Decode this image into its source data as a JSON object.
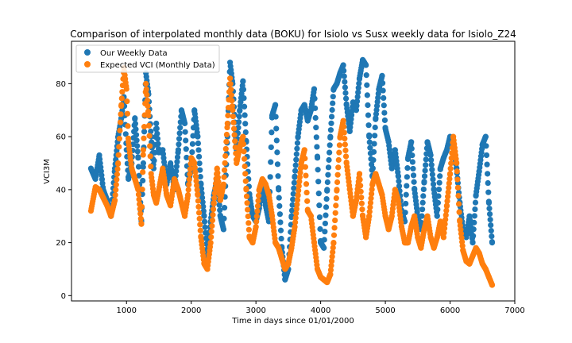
{
  "chart_data": {
    "type": "scatter",
    "title": "Comparison of interpolated monthly data (BOKU) for Isiolo vs Susx weekly data for Isiolo_Z24",
    "xlabel": "Time in days since 01/01/2000",
    "ylabel": "VCI3M",
    "xlim": [
      150,
      7000
    ],
    "ylim": [
      -2,
      96
    ],
    "xticks": [
      1000,
      2000,
      3000,
      4000,
      5000,
      6000,
      7000
    ],
    "yticks": [
      0,
      20,
      40,
      60,
      80
    ],
    "grid": false,
    "legend_position": "top-left",
    "series": [
      {
        "name": "Our Weekly Data",
        "color": "#1f77b4",
        "anchors": [
          [
            450,
            48
          ],
          [
            520,
            44
          ],
          [
            580,
            53
          ],
          [
            640,
            40
          ],
          [
            700,
            36
          ],
          [
            760,
            30
          ],
          [
            820,
            48
          ],
          [
            870,
            60
          ],
          [
            920,
            67
          ],
          [
            960,
            75
          ],
          [
            1000,
            55
          ],
          [
            1030,
            44
          ],
          [
            1080,
            50
          ],
          [
            1130,
            67
          ],
          [
            1180,
            52
          ],
          [
            1230,
            28
          ],
          [
            1260,
            50
          ],
          [
            1300,
            84
          ],
          [
            1340,
            76
          ],
          [
            1380,
            60
          ],
          [
            1420,
            48
          ],
          [
            1460,
            65
          ],
          [
            1500,
            54
          ],
          [
            1560,
            55
          ],
          [
            1620,
            42
          ],
          [
            1680,
            50
          ],
          [
            1740,
            40
          ],
          [
            1800,
            55
          ],
          [
            1850,
            70
          ],
          [
            1900,
            65
          ],
          [
            1950,
            42
          ],
          [
            2000,
            48
          ],
          [
            2050,
            70
          ],
          [
            2100,
            60
          ],
          [
            2150,
            42
          ],
          [
            2200,
            30
          ],
          [
            2250,
            15
          ],
          [
            2300,
            28
          ],
          [
            2350,
            38
          ],
          [
            2400,
            44
          ],
          [
            2450,
            30
          ],
          [
            2500,
            25
          ],
          [
            2560,
            60
          ],
          [
            2600,
            88
          ],
          [
            2640,
            80
          ],
          [
            2700,
            55
          ],
          [
            2750,
            70
          ],
          [
            2800,
            81
          ],
          [
            2850,
            58
          ],
          [
            2900,
            38
          ],
          [
            2950,
            30
          ],
          [
            3000,
            28
          ],
          [
            3050,
            33
          ],
          [
            3100,
            42
          ],
          [
            3150,
            34
          ],
          [
            3200,
            28
          ],
          [
            3250,
            68
          ],
          [
            3300,
            72
          ],
          [
            3350,
            40
          ],
          [
            3400,
            18
          ],
          [
            3450,
            6
          ],
          [
            3500,
            10
          ],
          [
            3550,
            30
          ],
          [
            3600,
            45
          ],
          [
            3650,
            60
          ],
          [
            3700,
            70
          ],
          [
            3750,
            72
          ],
          [
            3800,
            66
          ],
          [
            3850,
            70
          ],
          [
            3900,
            78
          ],
          [
            3950,
            52
          ],
          [
            4000,
            20
          ],
          [
            4050,
            18
          ],
          [
            4100,
            40
          ],
          [
            4150,
            60
          ],
          [
            4200,
            78
          ],
          [
            4250,
            80
          ],
          [
            4300,
            84
          ],
          [
            4350,
            87
          ],
          [
            4400,
            72
          ],
          [
            4450,
            62
          ],
          [
            4500,
            73
          ],
          [
            4550,
            70
          ],
          [
            4600,
            82
          ],
          [
            4650,
            89
          ],
          [
            4700,
            87
          ],
          [
            4750,
            60
          ],
          [
            4800,
            45
          ],
          [
            4850,
            67
          ],
          [
            4900,
            78
          ],
          [
            4950,
            83
          ],
          [
            5000,
            63
          ],
          [
            5050,
            58
          ],
          [
            5100,
            48
          ],
          [
            5150,
            55
          ],
          [
            5200,
            45
          ],
          [
            5250,
            32
          ],
          [
            5300,
            28
          ],
          [
            5350,
            52
          ],
          [
            5400,
            58
          ],
          [
            5450,
            40
          ],
          [
            5500,
            30
          ],
          [
            5550,
            25
          ],
          [
            5600,
            43
          ],
          [
            5650,
            58
          ],
          [
            5700,
            53
          ],
          [
            5750,
            40
          ],
          [
            5800,
            30
          ],
          [
            5850,
            48
          ],
          [
            5900,
            52
          ],
          [
            5950,
            55
          ],
          [
            6000,
            60
          ],
          [
            6050,
            58
          ],
          [
            6100,
            48
          ],
          [
            6150,
            35
          ],
          [
            6200,
            25
          ],
          [
            6250,
            22
          ],
          [
            6300,
            30
          ],
          [
            6350,
            20
          ],
          [
            6400,
            38
          ],
          [
            6450,
            47
          ],
          [
            6500,
            57
          ],
          [
            6550,
            60
          ],
          [
            6600,
            35
          ],
          [
            6650,
            20
          ]
        ]
      },
      {
        "name": "Expected VCI (Monthly Data)",
        "color": "#ff7f0e",
        "anchors": [
          [
            450,
            32
          ],
          [
            520,
            41
          ],
          [
            580,
            40
          ],
          [
            640,
            37
          ],
          [
            700,
            34
          ],
          [
            760,
            30
          ],
          [
            820,
            36
          ],
          [
            870,
            50
          ],
          [
            920,
            72
          ],
          [
            960,
            86
          ],
          [
            1000,
            78
          ],
          [
            1030,
            58
          ],
          [
            1080,
            48
          ],
          [
            1130,
            44
          ],
          [
            1180,
            40
          ],
          [
            1230,
            27
          ],
          [
            1260,
            55
          ],
          [
            1300,
            80
          ],
          [
            1340,
            68
          ],
          [
            1380,
            46
          ],
          [
            1420,
            38
          ],
          [
            1460,
            35
          ],
          [
            1500,
            40
          ],
          [
            1560,
            48
          ],
          [
            1620,
            38
          ],
          [
            1680,
            34
          ],
          [
            1740,
            44
          ],
          [
            1800,
            40
          ],
          [
            1850,
            35
          ],
          [
            1900,
            30
          ],
          [
            1950,
            38
          ],
          [
            2000,
            52
          ],
          [
            2050,
            50
          ],
          [
            2100,
            38
          ],
          [
            2150,
            22
          ],
          [
            2200,
            12
          ],
          [
            2250,
            10
          ],
          [
            2300,
            20
          ],
          [
            2350,
            35
          ],
          [
            2400,
            48
          ],
          [
            2450,
            36
          ],
          [
            2500,
            42
          ],
          [
            2560,
            65
          ],
          [
            2600,
            82
          ],
          [
            2640,
            70
          ],
          [
            2700,
            50
          ],
          [
            2750,
            56
          ],
          [
            2800,
            60
          ],
          [
            2850,
            40
          ],
          [
            2900,
            22
          ],
          [
            2950,
            20
          ],
          [
            3000,
            26
          ],
          [
            3050,
            40
          ],
          [
            3100,
            44
          ],
          [
            3150,
            42
          ],
          [
            3200,
            38
          ],
          [
            3250,
            30
          ],
          [
            3300,
            20
          ],
          [
            3350,
            18
          ],
          [
            3400,
            14
          ],
          [
            3450,
            10
          ],
          [
            3500,
            12
          ],
          [
            3550,
            18
          ],
          [
            3600,
            26
          ],
          [
            3650,
            38
          ],
          [
            3700,
            50
          ],
          [
            3750,
            55
          ],
          [
            3800,
            32
          ],
          [
            3850,
            30
          ],
          [
            3900,
            20
          ],
          [
            3950,
            10
          ],
          [
            4000,
            7
          ],
          [
            4050,
            6
          ],
          [
            4100,
            5
          ],
          [
            4150,
            8
          ],
          [
            4200,
            20
          ],
          [
            4250,
            40
          ],
          [
            4300,
            60
          ],
          [
            4350,
            66
          ],
          [
            4400,
            50
          ],
          [
            4450,
            40
          ],
          [
            4500,
            30
          ],
          [
            4550,
            36
          ],
          [
            4600,
            46
          ],
          [
            4650,
            30
          ],
          [
            4700,
            22
          ],
          [
            4750,
            30
          ],
          [
            4800,
            42
          ],
          [
            4850,
            46
          ],
          [
            4900,
            42
          ],
          [
            4950,
            38
          ],
          [
            5000,
            30
          ],
          [
            5050,
            25
          ],
          [
            5100,
            30
          ],
          [
            5150,
            40
          ],
          [
            5200,
            36
          ],
          [
            5250,
            26
          ],
          [
            5300,
            20
          ],
          [
            5350,
            20
          ],
          [
            5400,
            26
          ],
          [
            5450,
            30
          ],
          [
            5500,
            22
          ],
          [
            5550,
            18
          ],
          [
            5600,
            25
          ],
          [
            5650,
            30
          ],
          [
            5700,
            22
          ],
          [
            5750,
            18
          ],
          [
            5800,
            22
          ],
          [
            5850,
            28
          ],
          [
            5900,
            22
          ],
          [
            5950,
            34
          ],
          [
            6000,
            46
          ],
          [
            6050,
            60
          ],
          [
            6100,
            50
          ],
          [
            6150,
            28
          ],
          [
            6200,
            17
          ],
          [
            6250,
            13
          ],
          [
            6300,
            12
          ],
          [
            6350,
            15
          ],
          [
            6400,
            18
          ],
          [
            6450,
            16
          ],
          [
            6500,
            12
          ],
          [
            6550,
            10
          ],
          [
            6600,
            7
          ],
          [
            6650,
            4
          ]
        ]
      }
    ]
  }
}
